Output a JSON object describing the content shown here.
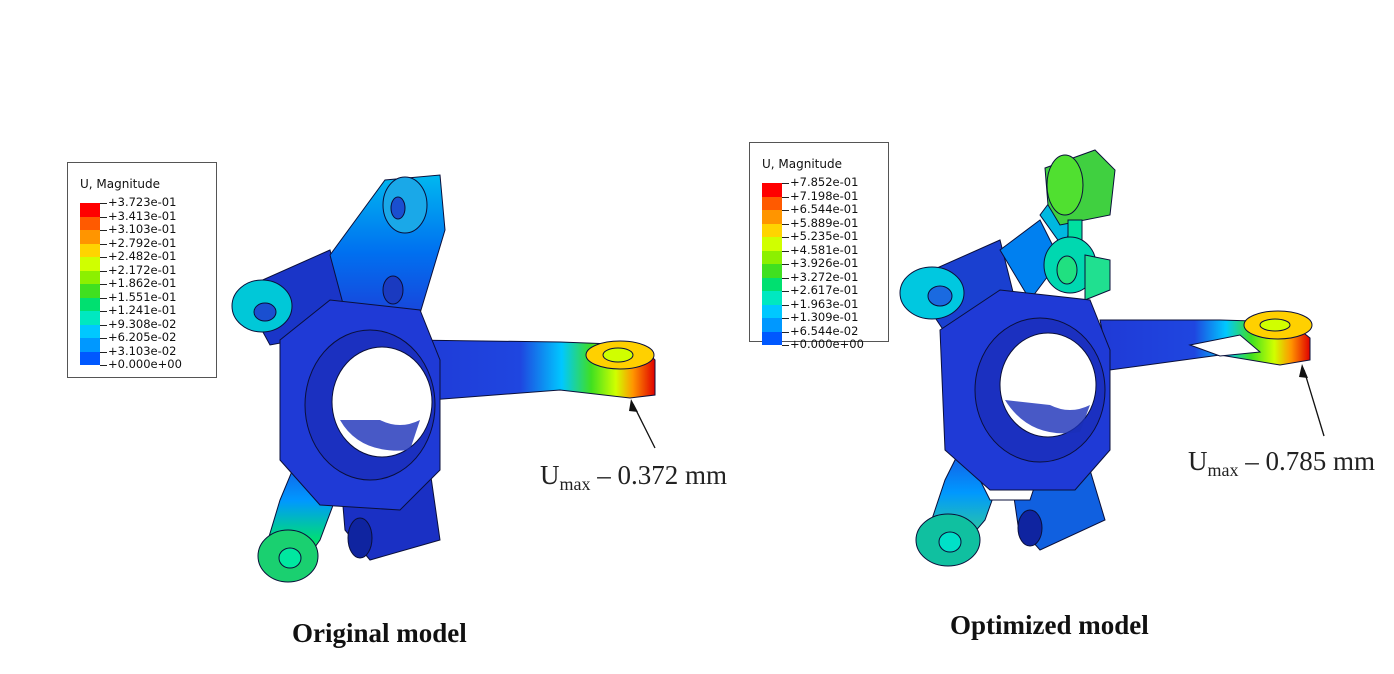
{
  "figure": {
    "left": {
      "legend": {
        "title": "U, Magnitude",
        "labels": [
          "+3.723e-01",
          "+3.413e-01",
          "+3.103e-01",
          "+2.792e-01",
          "+2.482e-01",
          "+2.172e-01",
          "+1.862e-01",
          "+1.551e-01",
          "+1.241e-01",
          "+9.308e-02",
          "+6.205e-02",
          "+3.103e-02",
          "+0.000e+00"
        ]
      },
      "annotation": {
        "symbol": "U",
        "subscript": "max",
        "text": "– 0.372 mm"
      },
      "caption": "Original model"
    },
    "right": {
      "legend": {
        "title": "U, Magnitude",
        "labels": [
          "+7.852e-01",
          "+7.198e-01",
          "+6.544e-01",
          "+5.889e-01",
          "+5.235e-01",
          "+4.581e-01",
          "+3.926e-01",
          "+3.272e-01",
          "+2.617e-01",
          "+1.963e-01",
          "+1.309e-01",
          "+6.544e-02",
          "+0.000e+00"
        ]
      },
      "annotation": {
        "symbol": "U",
        "subscript": "max",
        "text": "– 0.785 mm"
      },
      "caption": "Optimized model"
    }
  },
  "colors": {
    "scale": [
      "#ff0000",
      "#ff5a00",
      "#ff9500",
      "#ffd400",
      "#d0ff00",
      "#8cf000",
      "#40e020",
      "#00e070",
      "#00e8c0",
      "#00c8ff",
      "#0098ff",
      "#0058ff",
      "#0000ff"
    ],
    "part_base": "#1f3ad6",
    "part_dark": "#1228a8",
    "outline": "#0a0f3a"
  }
}
